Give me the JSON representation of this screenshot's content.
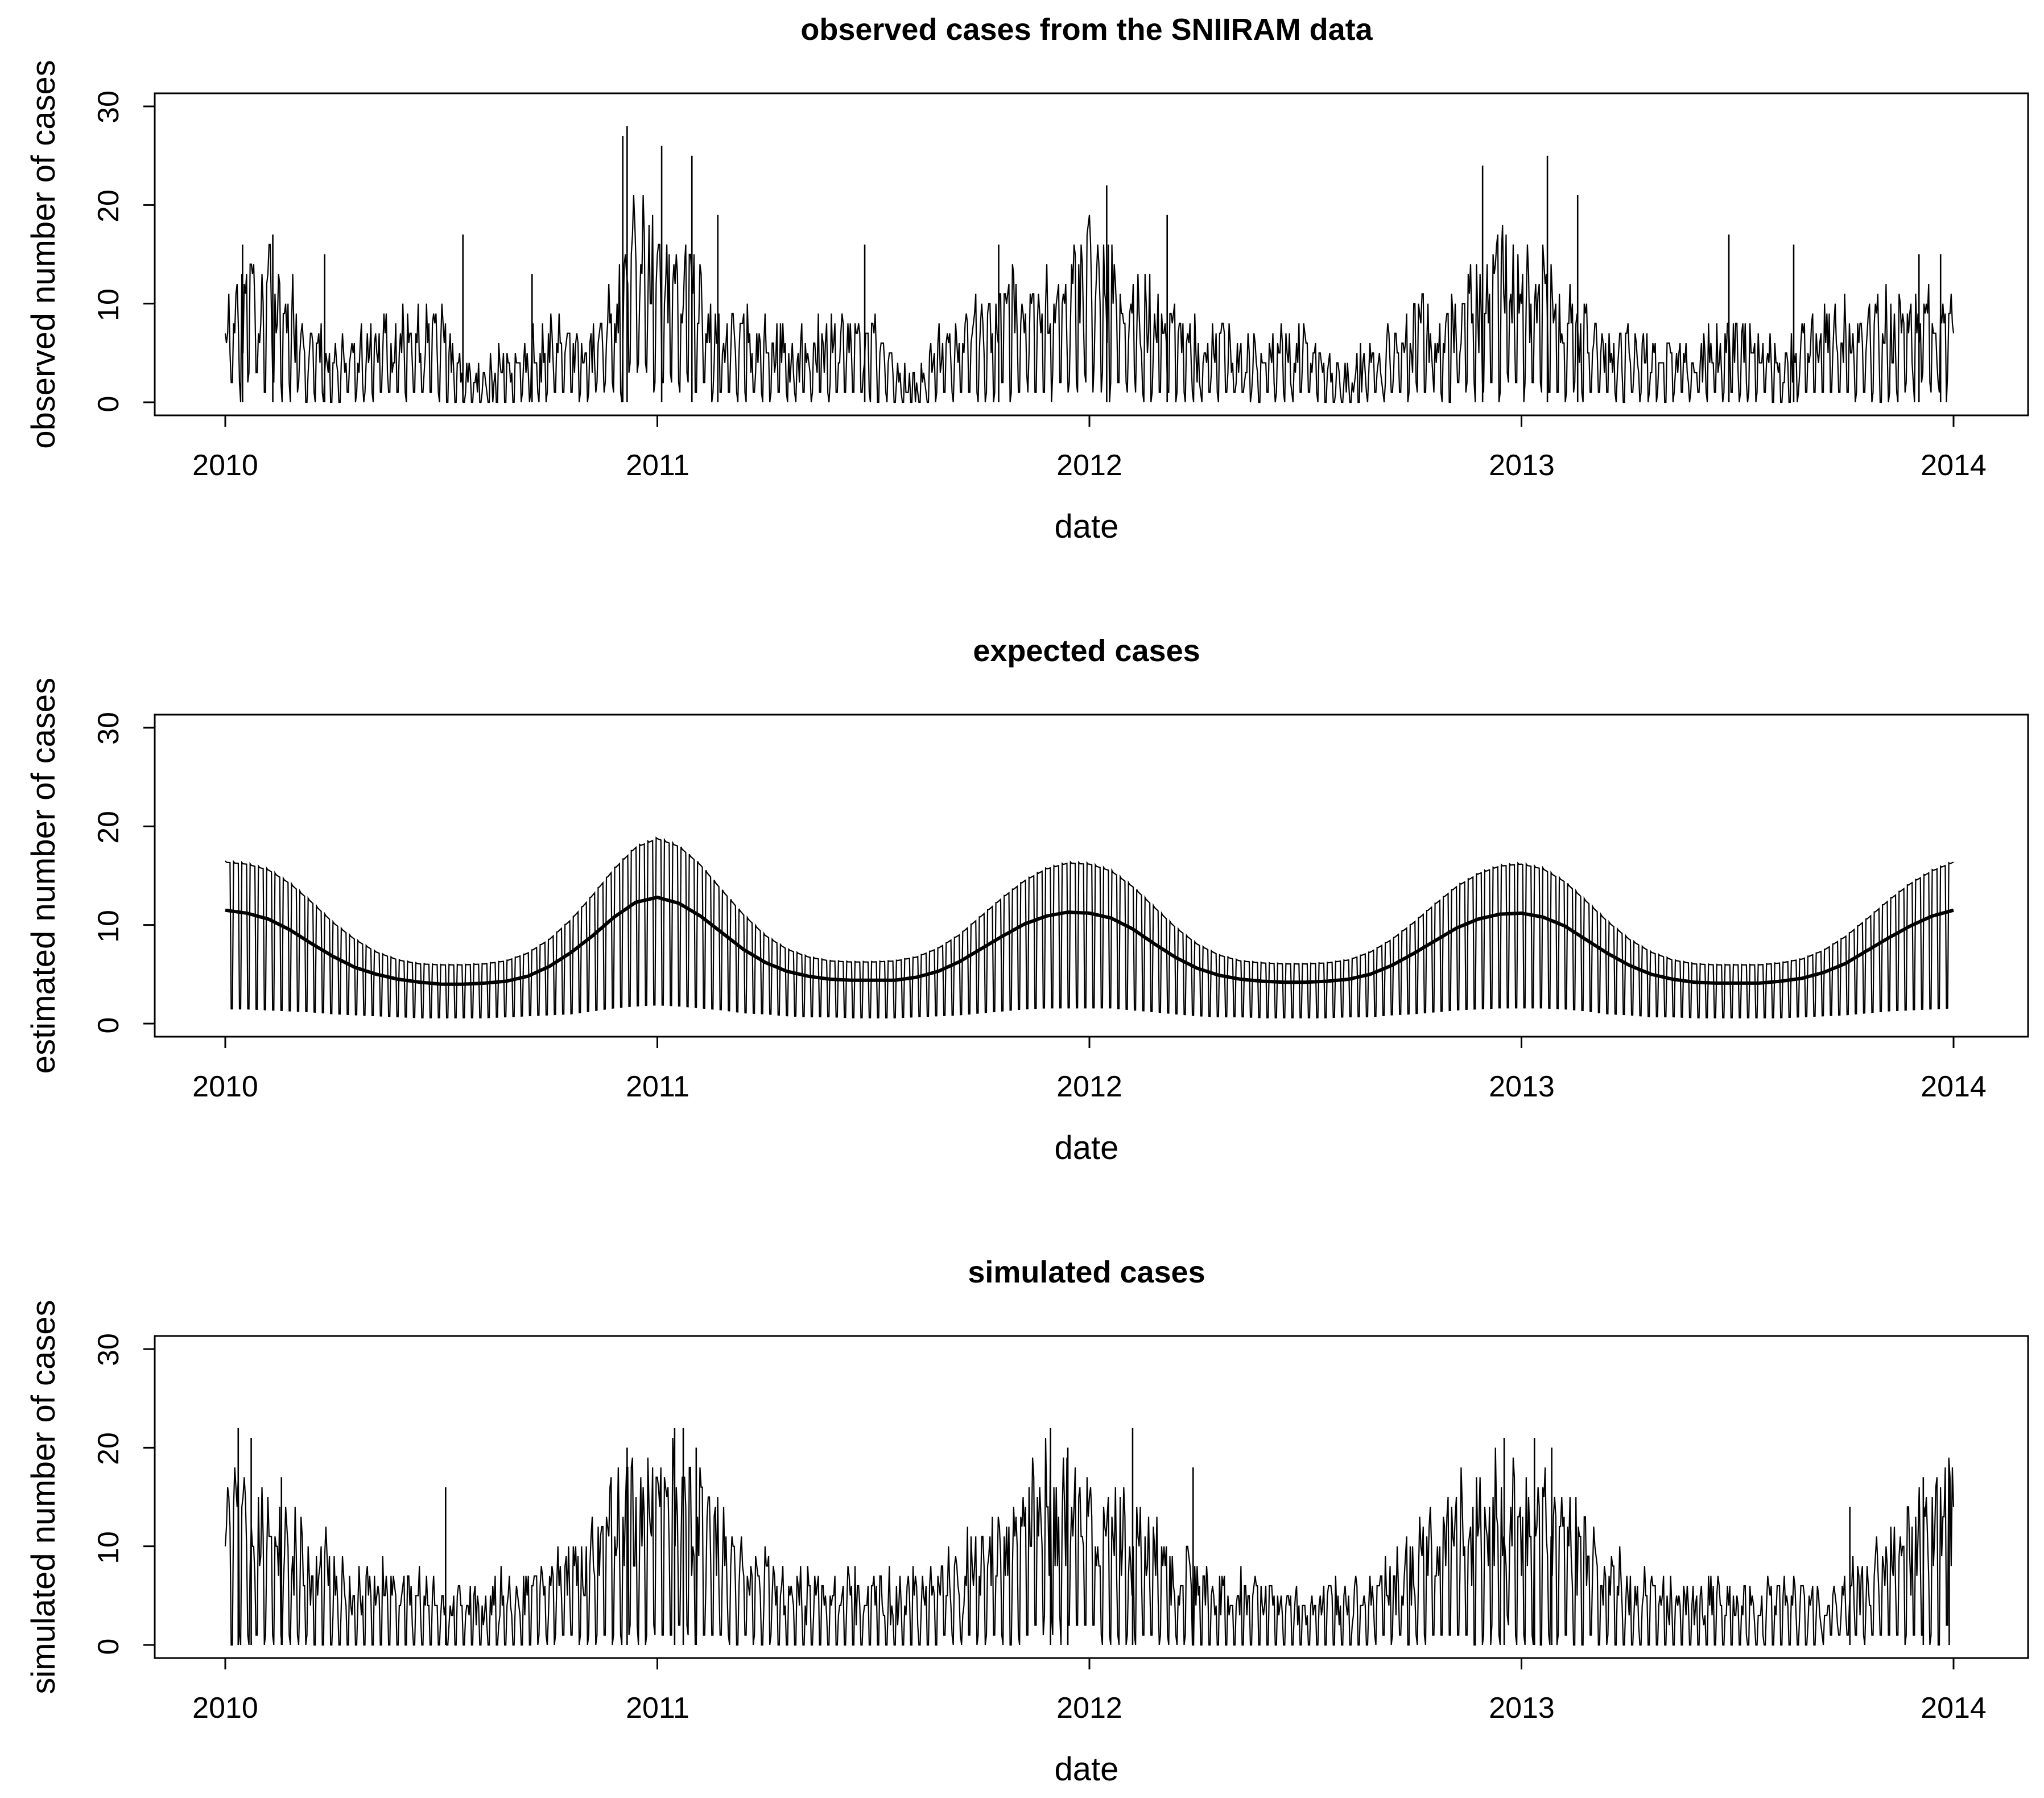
{
  "chart_data": [
    {
      "type": "line",
      "title": "observed cases from the SNIIRAM data",
      "xlabel": "date",
      "ylabel": "observed number of cases",
      "xlim": [
        2010,
        2014
      ],
      "ylim": [
        0,
        30
      ],
      "xticks": [
        "2010",
        "2011",
        "2012",
        "2013",
        "2014"
      ],
      "yticks": [
        "0",
        "10",
        "20",
        "30"
      ],
      "series": [
        {
          "name": "observed",
          "x": [
            2010.0,
            2010.05,
            2010.1,
            2010.15,
            2010.2,
            2010.25,
            2010.3,
            2010.35,
            2010.4,
            2010.45,
            2010.5,
            2010.55,
            2010.6,
            2010.65,
            2010.7,
            2010.75,
            2010.8,
            2010.85,
            2010.9,
            2010.95,
            2011.0,
            2011.05,
            2011.1,
            2011.15,
            2011.2,
            2011.25,
            2011.3,
            2011.35,
            2011.4,
            2011.45,
            2011.5,
            2011.55,
            2011.6,
            2011.65,
            2011.7,
            2011.75,
            2011.8,
            2011.85,
            2011.9,
            2011.95,
            2012.0,
            2012.05,
            2012.1,
            2012.15,
            2012.2,
            2012.25,
            2012.3,
            2012.35,
            2012.4,
            2012.45,
            2012.5,
            2012.55,
            2012.6,
            2012.65,
            2012.7,
            2012.75,
            2012.8,
            2012.85,
            2012.9,
            2012.95,
            2013.0,
            2013.05,
            2013.1,
            2013.15,
            2013.2,
            2013.25,
            2013.3,
            2013.35,
            2013.4,
            2013.45,
            2013.5,
            2013.55,
            2013.6,
            2013.65,
            2013.7,
            2013.75,
            2013.8,
            2013.85,
            2013.9,
            2013.95,
            2014.0
          ],
          "weekday": [
            10,
            12,
            12,
            11,
            7,
            5,
            6,
            7,
            8,
            8,
            8,
            3,
            3,
            4,
            6,
            7,
            7,
            6,
            11,
            17,
            15,
            14,
            12,
            8,
            7,
            7,
            6,
            6,
            7,
            8,
            7,
            4,
            3,
            6,
            7,
            9,
            10,
            10,
            12,
            13,
            15,
            13,
            10,
            9,
            8,
            6,
            6,
            6,
            5,
            6,
            6,
            4,
            4,
            5,
            6,
            8,
            9,
            11,
            13,
            14,
            13,
            12,
            10,
            8,
            7,
            6,
            5,
            5,
            5,
            6,
            7,
            6,
            4,
            7,
            8,
            8,
            8,
            9,
            10,
            10,
            9
          ],
          "weekend": [
            1,
            2,
            2,
            2,
            1,
            0,
            1,
            1,
            1,
            1,
            1,
            0,
            0,
            0,
            1,
            1,
            1,
            1,
            2,
            3,
            3,
            2,
            2,
            1,
            1,
            1,
            1,
            1,
            1,
            1,
            1,
            0,
            0,
            1,
            1,
            1,
            2,
            2,
            2,
            2,
            3,
            2,
            2,
            1,
            1,
            1,
            1,
            1,
            1,
            1,
            1,
            0,
            0,
            1,
            1,
            1,
            2,
            2,
            2,
            2,
            2,
            2,
            2,
            1,
            1,
            1,
            1,
            1,
            1,
            1,
            1,
            1,
            0,
            1,
            1,
            1,
            1,
            1,
            2,
            2,
            2
          ],
          "peaks": [
            [
              2010.04,
              16
            ],
            [
              2010.11,
              17
            ],
            [
              2010.23,
              15
            ],
            [
              2010.55,
              17
            ],
            [
              2010.71,
              13
            ],
            [
              2010.92,
              27
            ],
            [
              2010.93,
              28
            ],
            [
              2011.01,
              26
            ],
            [
              2011.08,
              25
            ],
            [
              2011.14,
              19
            ],
            [
              2011.48,
              16
            ],
            [
              2011.79,
              16
            ],
            [
              2012.04,
              22
            ],
            [
              2012.18,
              19
            ],
            [
              2012.91,
              24
            ],
            [
              2013.06,
              25
            ],
            [
              2013.13,
              21
            ],
            [
              2013.48,
              17
            ],
            [
              2013.63,
              16
            ],
            [
              2013.92,
              15
            ],
            [
              2013.97,
              15
            ]
          ]
        }
      ]
    },
    {
      "type": "line",
      "title": "expected cases",
      "xlabel": "date",
      "ylabel": "estimated number of cases",
      "xlim": [
        2010,
        2014
      ],
      "ylim": [
        0,
        30
      ],
      "xticks": [
        "2010",
        "2011",
        "2012",
        "2013",
        "2014"
      ],
      "yticks": [
        "0",
        "10",
        "20",
        "30"
      ],
      "series": [
        {
          "name": "expected",
          "x": [
            2010.0,
            2010.05,
            2010.1,
            2010.15,
            2010.2,
            2010.25,
            2010.3,
            2010.35,
            2010.4,
            2010.45,
            2010.5,
            2010.55,
            2010.6,
            2010.65,
            2010.7,
            2010.75,
            2010.8,
            2010.85,
            2010.9,
            2010.95,
            2011.0,
            2011.05,
            2011.1,
            2011.15,
            2011.2,
            2011.25,
            2011.3,
            2011.35,
            2011.4,
            2011.45,
            2011.5,
            2011.55,
            2011.6,
            2011.65,
            2011.7,
            2011.75,
            2011.8,
            2011.85,
            2011.9,
            2011.95,
            2012.0,
            2012.05,
            2012.1,
            2012.15,
            2012.2,
            2012.25,
            2012.3,
            2012.35,
            2012.4,
            2012.45,
            2012.5,
            2012.55,
            2012.6,
            2012.65,
            2012.7,
            2012.75,
            2012.8,
            2012.85,
            2012.9,
            2012.95,
            2013.0,
            2013.05,
            2013.1,
            2013.15,
            2013.2,
            2013.25,
            2013.3,
            2013.35,
            2013.4,
            2013.45,
            2013.5,
            2013.55,
            2013.6,
            2013.65,
            2013.7,
            2013.75,
            2013.8,
            2013.85,
            2013.9,
            2013.95,
            2014.0
          ],
          "weekday": [
            16.5,
            16.3,
            15.7,
            14.3,
            12.4,
            10.3,
            8.6,
            7.3,
            6.5,
            6.1,
            6.0,
            6.0,
            6.1,
            6.4,
            7.2,
            8.6,
            10.6,
            13.1,
            15.8,
            18.0,
            18.9,
            18.1,
            16.2,
            13.6,
            11.1,
            9.0,
            7.6,
            6.8,
            6.4,
            6.3,
            6.3,
            6.4,
            6.8,
            7.7,
            9.1,
            11.0,
            12.9,
            14.6,
            15.8,
            16.4,
            16.3,
            15.6,
            14.0,
            11.9,
            9.8,
            8.1,
            7.0,
            6.4,
            6.2,
            6.1,
            6.1,
            6.2,
            6.5,
            7.3,
            8.6,
            10.3,
            12.2,
            14.0,
            15.3,
            16.1,
            16.3,
            15.8,
            14.5,
            12.5,
            10.4,
            8.6,
            7.3,
            6.5,
            6.1,
            6.0,
            6.0,
            6.0,
            6.2,
            6.6,
            7.5,
            8.9,
            10.7,
            12.6,
            14.3,
            15.6,
            16.5
          ],
          "weekend": [
            1.5,
            1.5,
            1.4,
            1.3,
            1.2,
            1.0,
            0.9,
            0.8,
            0.7,
            0.6,
            0.6,
            0.6,
            0.6,
            0.7,
            0.8,
            0.9,
            1.0,
            1.3,
            1.6,
            1.8,
            1.9,
            1.8,
            1.6,
            1.4,
            1.1,
            1.0,
            0.8,
            0.7,
            0.7,
            0.6,
            0.6,
            0.6,
            0.7,
            0.8,
            0.9,
            1.1,
            1.3,
            1.5,
            1.6,
            1.6,
            1.6,
            1.6,
            1.4,
            1.2,
            1.0,
            0.8,
            0.7,
            0.7,
            0.6,
            0.6,
            0.6,
            0.6,
            0.7,
            0.7,
            0.9,
            1.0,
            1.2,
            1.4,
            1.5,
            1.6,
            1.6,
            1.6,
            1.5,
            1.3,
            1.0,
            0.9,
            0.7,
            0.7,
            0.6,
            0.6,
            0.6,
            0.6,
            0.6,
            0.7,
            0.8,
            0.9,
            1.1,
            1.3,
            1.4,
            1.5,
            1.6
          ],
          "trend": [
            11.5,
            11.2,
            10.6,
            9.5,
            8.1,
            6.8,
            5.7,
            5.0,
            4.5,
            4.2,
            4.0,
            4.0,
            4.1,
            4.3,
            4.8,
            5.8,
            7.2,
            8.9,
            10.8,
            12.3,
            12.8,
            12.2,
            10.9,
            9.2,
            7.5,
            6.2,
            5.3,
            4.8,
            4.5,
            4.4,
            4.4,
            4.4,
            4.7,
            5.3,
            6.3,
            7.6,
            8.9,
            10.1,
            10.9,
            11.3,
            11.2,
            10.7,
            9.6,
            8.1,
            6.7,
            5.6,
            4.9,
            4.5,
            4.3,
            4.2,
            4.2,
            4.3,
            4.5,
            5.0,
            5.9,
            7.1,
            8.4,
            9.7,
            10.6,
            11.1,
            11.2,
            10.8,
            9.9,
            8.5,
            7.1,
            5.9,
            5.0,
            4.5,
            4.2,
            4.1,
            4.1,
            4.1,
            4.3,
            4.6,
            5.2,
            6.1,
            7.4,
            8.7,
            9.9,
            10.9,
            11.5
          ]
        }
      ]
    },
    {
      "type": "line",
      "title": "simulated cases",
      "xlabel": "date",
      "ylabel": "simulated number of cases",
      "xlim": [
        2010,
        2014
      ],
      "ylim": [
        0,
        30
      ],
      "xticks": [
        "2010",
        "2011",
        "2012",
        "2013",
        "2014"
      ],
      "yticks": [
        "0",
        "10",
        "20",
        "30"
      ],
      "series": [
        {
          "name": "simulated",
          "x": [
            2010.0,
            2010.05,
            2010.1,
            2010.15,
            2010.2,
            2010.25,
            2010.3,
            2010.35,
            2010.4,
            2010.45,
            2010.5,
            2010.55,
            2010.6,
            2010.65,
            2010.7,
            2010.75,
            2010.8,
            2010.85,
            2010.9,
            2010.95,
            2011.0,
            2011.05,
            2011.1,
            2011.15,
            2011.2,
            2011.25,
            2011.3,
            2011.35,
            2011.4,
            2011.45,
            2011.5,
            2011.55,
            2011.6,
            2011.65,
            2011.7,
            2011.75,
            2011.8,
            2011.85,
            2011.9,
            2011.95,
            2012.0,
            2012.05,
            2012.1,
            2012.15,
            2012.2,
            2012.25,
            2012.3,
            2012.35,
            2012.4,
            2012.45,
            2012.5,
            2012.55,
            2012.6,
            2012.65,
            2012.7,
            2012.75,
            2012.8,
            2012.85,
            2012.9,
            2012.95,
            2013.0,
            2013.05,
            2013.1,
            2013.15,
            2013.2,
            2013.25,
            2013.3,
            2013.35,
            2013.4,
            2013.45,
            2013.5,
            2013.55,
            2013.6,
            2013.65,
            2013.7,
            2013.75,
            2013.8,
            2013.85,
            2013.9,
            2013.95,
            2014.0
          ],
          "weekday": [
            13,
            14,
            13,
            12,
            10,
            8,
            7,
            6,
            6,
            6,
            5,
            5,
            5,
            6,
            6,
            7,
            9,
            11,
            14,
            16,
            17,
            16,
            14,
            11,
            9,
            8,
            7,
            6,
            6,
            6,
            6,
            6,
            6,
            7,
            8,
            10,
            12,
            14,
            16,
            15,
            14,
            13,
            12,
            10,
            8,
            7,
            6,
            6,
            6,
            5,
            5,
            5,
            6,
            6,
            7,
            9,
            11,
            13,
            14,
            15,
            15,
            14,
            13,
            11,
            9,
            7,
            6,
            6,
            5,
            5,
            5,
            5,
            5,
            6,
            6,
            7,
            8,
            10,
            11,
            13,
            15
          ],
          "weekend": [
            1,
            1,
            1,
            1,
            1,
            0,
            0,
            0,
            0,
            0,
            0,
            0,
            0,
            0,
            0,
            1,
            1,
            1,
            1,
            2,
            2,
            2,
            1,
            1,
            1,
            1,
            0,
            0,
            0,
            0,
            0,
            0,
            0,
            1,
            1,
            1,
            1,
            1,
            2,
            2,
            2,
            1,
            1,
            1,
            1,
            0,
            0,
            0,
            0,
            0,
            0,
            0,
            0,
            1,
            1,
            1,
            1,
            1,
            1,
            2,
            2,
            1,
            1,
            1,
            1,
            0,
            0,
            0,
            0,
            0,
            0,
            0,
            0,
            0,
            1,
            1,
            1,
            1,
            1,
            1,
            2
          ],
          "peaks": [
            [
              2010.03,
              22
            ],
            [
              2010.06,
              21
            ],
            [
              2010.13,
              17
            ],
            [
              2010.51,
              16
            ],
            [
              2010.93,
              20
            ],
            [
              2011.04,
              22
            ],
            [
              2011.06,
              22
            ],
            [
              2011.09,
              20
            ],
            [
              2011.91,
              22
            ],
            [
              2011.95,
              20
            ],
            [
              2012.1,
              22
            ],
            [
              2012.24,
              18
            ],
            [
              2012.96,
              21
            ],
            [
              2013.03,
              21
            ],
            [
              2013.07,
              20
            ],
            [
              2013.76,
              14
            ],
            [
              2013.93,
              17
            ],
            [
              2013.99,
              17
            ]
          ]
        }
      ]
    }
  ]
}
